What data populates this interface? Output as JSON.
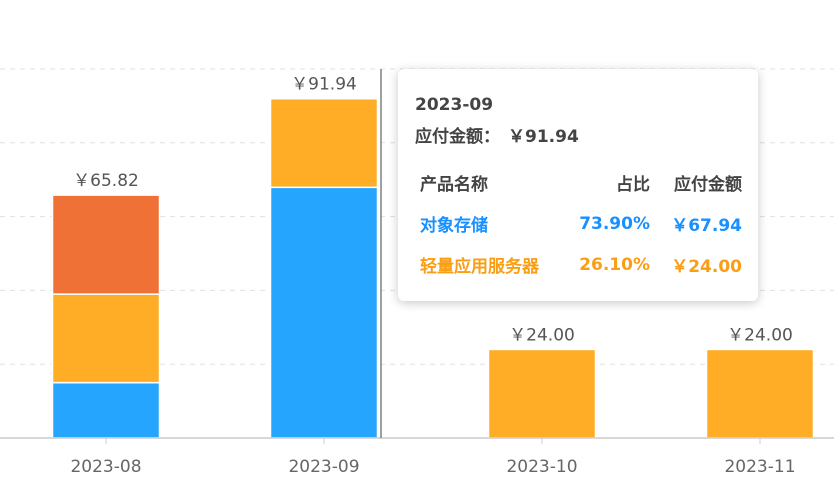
{
  "chart_data": {
    "type": "bar",
    "stacked": true,
    "categories": [
      "2023-08",
      "2023-09",
      "2023-10",
      "2023-11"
    ],
    "ylim": [
      0,
      100
    ],
    "grid": true,
    "totals": [
      "￥65.82",
      "￥91.94",
      "￥24.00",
      "￥24.00"
    ],
    "series": [
      {
        "color": "#26a5ff",
        "values": [
          15.0,
          67.94,
          0,
          0
        ]
      },
      {
        "color": "#ffad26",
        "values": [
          24.0,
          24.0,
          24.0,
          24.0
        ]
      },
      {
        "color": "#f07135",
        "values": [
          26.82,
          0,
          0,
          0
        ]
      }
    ],
    "highlight_category": "2023-09"
  },
  "tooltip": {
    "date": "2023-09",
    "total_label": "应付金额：",
    "total_value": "￥91.94",
    "headers": [
      "产品名称",
      "占比",
      "应付金额"
    ],
    "rows": [
      {
        "name": "对象存储",
        "percent": "73.90%",
        "amount": "￥67.94",
        "color": "#1890ff"
      },
      {
        "name": "轻量应用服务器",
        "percent": "26.10%",
        "amount": "￥24.00",
        "color": "#fa9e14"
      }
    ]
  }
}
